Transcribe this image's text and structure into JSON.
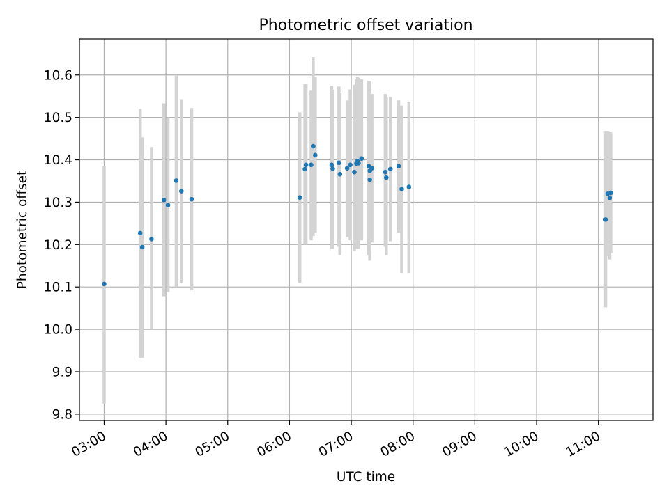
{
  "chart_data": {
    "type": "scatter",
    "title": "Photometric offset variation",
    "xlabel": "UTC time",
    "ylabel": "Photometric offset",
    "x_axis_type": "time",
    "x_ticks": [
      "03:00",
      "04:00",
      "05:00",
      "06:00",
      "07:00",
      "08:00",
      "09:00",
      "10:00",
      "11:00"
    ],
    "x_tick_label_rotation_deg": 30,
    "y_ticks": [
      9.8,
      9.9,
      10.0,
      10.1,
      10.2,
      10.3,
      10.4,
      10.5,
      10.6
    ],
    "xlim": [
      "02:36",
      "11:53"
    ],
    "ylim": [
      9.785,
      10.685
    ],
    "grid": true,
    "legend": false,
    "point_color": "#1f77b4",
    "errorbar_color": "#d3d3d3",
    "series": [
      {
        "marker": "point",
        "errorbars": true,
        "points": [
          {
            "x": "03:00",
            "y": 10.107,
            "ylo": 9.825,
            "yhi": 10.385
          },
          {
            "x": "03:35",
            "y": 10.227,
            "ylo": 9.933,
            "yhi": 10.52
          },
          {
            "x": "03:37",
            "y": 10.194,
            "ylo": 9.933,
            "yhi": 10.453
          },
          {
            "x": "03:46",
            "y": 10.213,
            "ylo": 10.0,
            "yhi": 10.43
          },
          {
            "x": "03:58",
            "y": 10.305,
            "ylo": 10.078,
            "yhi": 10.533
          },
          {
            "x": "04:02",
            "y": 10.293,
            "ylo": 10.088,
            "yhi": 10.5
          },
          {
            "x": "04:10",
            "y": 10.351,
            "ylo": 10.1,
            "yhi": 10.598
          },
          {
            "x": "04:15",
            "y": 10.326,
            "ylo": 10.11,
            "yhi": 10.543
          },
          {
            "x": "04:25",
            "y": 10.307,
            "ylo": 10.092,
            "yhi": 10.522
          },
          {
            "x": "06:10",
            "y": 10.311,
            "ylo": 10.11,
            "yhi": 10.512
          },
          {
            "x": "06:15",
            "y": 10.378,
            "ylo": 10.2,
            "yhi": 10.578
          },
          {
            "x": "06:16",
            "y": 10.388,
            "ylo": 10.2,
            "yhi": 10.578
          },
          {
            "x": "06:21",
            "y": 10.388,
            "ylo": 10.21,
            "yhi": 10.563
          },
          {
            "x": "06:23",
            "y": 10.432,
            "ylo": 10.22,
            "yhi": 10.642
          },
          {
            "x": "06:25",
            "y": 10.411,
            "ylo": 10.228,
            "yhi": 10.595
          },
          {
            "x": "06:41",
            "y": 10.388,
            "ylo": 10.19,
            "yhi": 10.575
          },
          {
            "x": "06:42",
            "y": 10.379,
            "ylo": 10.19,
            "yhi": 10.565
          },
          {
            "x": "06:48",
            "y": 10.393,
            "ylo": 10.195,
            "yhi": 10.573
          },
          {
            "x": "06:49",
            "y": 10.366,
            "ylo": 10.175,
            "yhi": 10.557
          },
          {
            "x": "06:56",
            "y": 10.38,
            "ylo": 10.218,
            "yhi": 10.54
          },
          {
            "x": "06:59",
            "y": 10.388,
            "ylo": 10.21,
            "yhi": 10.566
          },
          {
            "x": "07:03",
            "y": 10.371,
            "ylo": 10.185,
            "yhi": 10.577
          },
          {
            "x": "07:05",
            "y": 10.391,
            "ylo": 10.19,
            "yhi": 10.59
          },
          {
            "x": "07:06",
            "y": 10.397,
            "ylo": 10.195,
            "yhi": 10.595
          },
          {
            "x": "07:07",
            "y": 10.392,
            "ylo": 10.19,
            "yhi": 10.593
          },
          {
            "x": "07:10",
            "y": 10.403,
            "ylo": 10.21,
            "yhi": 10.59
          },
          {
            "x": "07:17",
            "y": 10.385,
            "ylo": 10.175,
            "yhi": 10.586
          },
          {
            "x": "07:18",
            "y": 10.374,
            "ylo": 10.162,
            "yhi": 10.586
          },
          {
            "x": "07:18",
            "y": 10.353,
            "ylo": 10.162,
            "yhi": 10.572
          },
          {
            "x": "07:20",
            "y": 10.38,
            "ylo": 10.205,
            "yhi": 10.555
          },
          {
            "x": "07:33",
            "y": 10.371,
            "ylo": 10.195,
            "yhi": 10.555
          },
          {
            "x": "07:34",
            "y": 10.358,
            "ylo": 10.175,
            "yhi": 10.547
          },
          {
            "x": "07:38",
            "y": 10.378,
            "ylo": 10.208,
            "yhi": 10.548
          },
          {
            "x": "07:46",
            "y": 10.385,
            "ylo": 10.228,
            "yhi": 10.54
          },
          {
            "x": "07:49",
            "y": 10.331,
            "ylo": 10.133,
            "yhi": 10.528
          },
          {
            "x": "07:56",
            "y": 10.336,
            "ylo": 10.133,
            "yhi": 10.537
          },
          {
            "x": "11:07",
            "y": 10.259,
            "ylo": 10.052,
            "yhi": 10.468
          },
          {
            "x": "11:09",
            "y": 10.32,
            "ylo": 10.173,
            "yhi": 10.468
          },
          {
            "x": "11:11",
            "y": 10.31,
            "ylo": 10.165,
            "yhi": 10.465
          },
          {
            "x": "11:12",
            "y": 10.322,
            "ylo": 10.18,
            "yhi": 10.464
          }
        ]
      }
    ]
  }
}
